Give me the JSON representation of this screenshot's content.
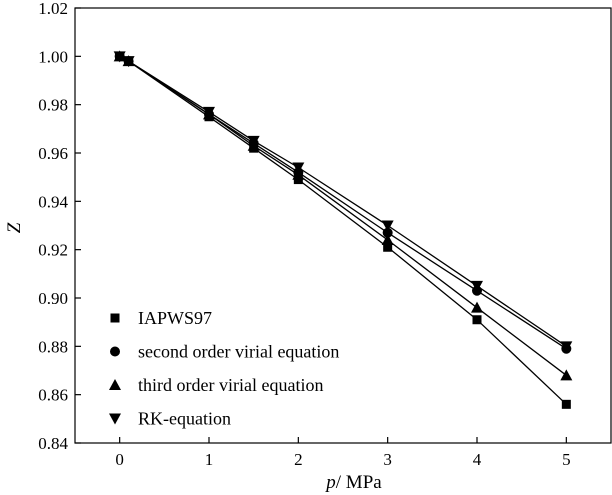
{
  "chart_data": {
    "type": "line",
    "xlabel_var": "p",
    "xlabel_unit": "/ MPa",
    "ylabel": "Z",
    "xlim": [
      -0.5,
      5.5
    ],
    "ylim": [
      0.84,
      1.02
    ],
    "xticks": [
      0,
      1,
      2,
      3,
      4,
      5
    ],
    "yticks": [
      0.84,
      0.86,
      0.88,
      0.9,
      0.92,
      0.94,
      0.96,
      0.98,
      1.0,
      1.02
    ],
    "xtick_labels": [
      "0",
      "1",
      "2",
      "3",
      "4",
      "5"
    ],
    "ytick_labels": [
      "0.84",
      "0.86",
      "0.88",
      "0.90",
      "0.92",
      "0.94",
      "0.96",
      "0.98",
      "1.00",
      "1.02"
    ],
    "grid": false,
    "legend_position": "bottom-left",
    "series": [
      {
        "name": "IAPWS97",
        "marker": "square",
        "x": [
          0,
          0.1,
          1,
          1.5,
          2,
          3,
          4,
          5
        ],
        "y": [
          1.0,
          0.998,
          0.975,
          0.962,
          0.949,
          0.921,
          0.891,
          0.856
        ]
      },
      {
        "name": "second order virial equation",
        "marker": "circle",
        "x": [
          0,
          0.1,
          1,
          1.5,
          2,
          3,
          4,
          5
        ],
        "y": [
          1.0,
          0.998,
          0.976,
          0.964,
          0.952,
          0.927,
          0.903,
          0.879
        ]
      },
      {
        "name": "third order virial equation",
        "marker": "triangle-up",
        "x": [
          0,
          0.1,
          1,
          1.5,
          2,
          3,
          4,
          5
        ],
        "y": [
          1.0,
          0.998,
          0.976,
          0.963,
          0.951,
          0.924,
          0.896,
          0.868
        ]
      },
      {
        "name": "RK-equation",
        "marker": "triangle-down",
        "x": [
          0,
          0.1,
          1,
          1.5,
          2,
          3,
          4,
          5
        ],
        "y": [
          1.0,
          0.998,
          0.977,
          0.965,
          0.954,
          0.93,
          0.905,
          0.88
        ]
      }
    ]
  }
}
